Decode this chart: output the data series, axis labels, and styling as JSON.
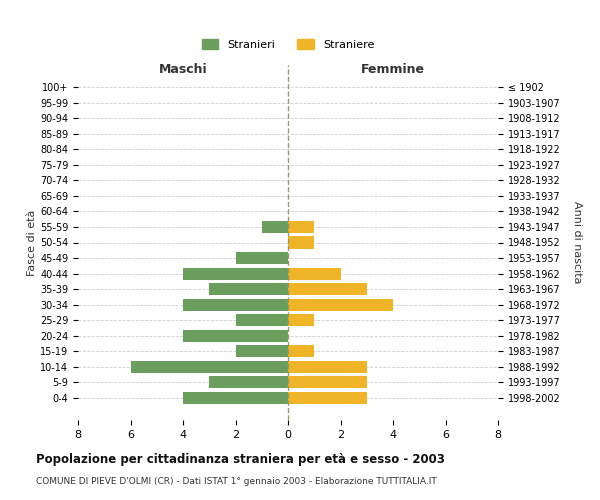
{
  "age_groups": [
    "0-4",
    "5-9",
    "10-14",
    "15-19",
    "20-24",
    "25-29",
    "30-34",
    "35-39",
    "40-44",
    "45-49",
    "50-54",
    "55-59",
    "60-64",
    "65-69",
    "70-74",
    "75-79",
    "80-84",
    "85-89",
    "90-94",
    "95-99",
    "100+"
  ],
  "birth_years": [
    "1998-2002",
    "1993-1997",
    "1988-1992",
    "1983-1987",
    "1978-1982",
    "1973-1977",
    "1968-1972",
    "1963-1967",
    "1958-1962",
    "1953-1957",
    "1948-1952",
    "1943-1947",
    "1938-1942",
    "1933-1937",
    "1928-1932",
    "1923-1927",
    "1918-1922",
    "1913-1917",
    "1908-1912",
    "1903-1907",
    "≤ 1902"
  ],
  "maschi": [
    4,
    3,
    6,
    2,
    4,
    2,
    4,
    3,
    4,
    2,
    0,
    1,
    0,
    0,
    0,
    0,
    0,
    0,
    0,
    0,
    0
  ],
  "femmine": [
    3,
    3,
    3,
    1,
    0,
    1,
    4,
    3,
    2,
    0,
    1,
    1,
    0,
    0,
    0,
    0,
    0,
    0,
    0,
    0,
    0
  ],
  "color_maschi": "#6b9e5e",
  "color_femmine": "#f0b429",
  "title": "Popolazione per cittadinanza straniera per età e sesso - 2003",
  "subtitle": "COMUNE DI PIEVE D'OLMI (CR) - Dati ISTAT 1° gennaio 2003 - Elaborazione TUTTITALIA.IT",
  "xlabel_left": "Maschi",
  "xlabel_right": "Femmine",
  "ylabel_left": "Fasce di età",
  "ylabel_right": "Anni di nascita",
  "legend_maschi": "Stranieri",
  "legend_femmine": "Straniere",
  "xlim": 8,
  "background_color": "#ffffff",
  "grid_color": "#cccccc"
}
